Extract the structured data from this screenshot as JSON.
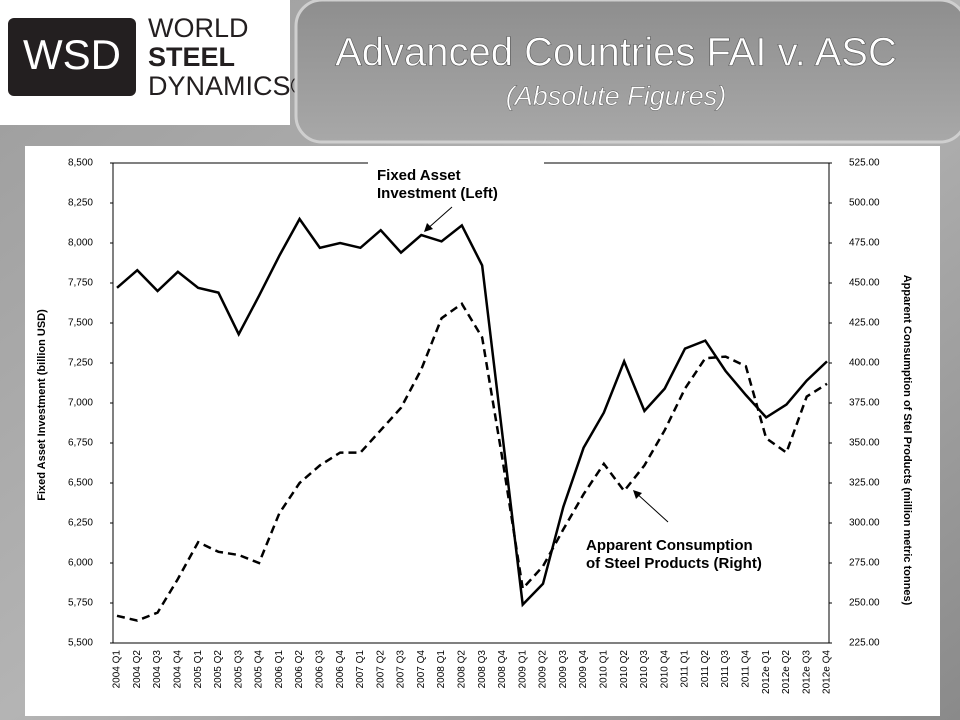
{
  "header": {
    "logo": "WSD",
    "logo_words": [
      "WORLD",
      "STEEL",
      "DYNAMICS®"
    ],
    "title": "Advanced Countries FAI v. ASC",
    "subtitle": "(Absolute Figures)"
  },
  "chart_data": {
    "type": "line",
    "y_label": "Fixed Asset Investment (billion USD)",
    "y2_label": "Apparent Consumption  of Stel Products  (million metric tonnes)",
    "categories": [
      "2004 Q1",
      "2004 Q2",
      "2004 Q3",
      "2004 Q4",
      "2005 Q1",
      "2005 Q2",
      "2005 Q3",
      "2005 Q4",
      "2006 Q1",
      "2006 Q2",
      "2006 Q3",
      "2006 Q4",
      "2007 Q1",
      "2007 Q2",
      "2007 Q3",
      "2007 Q4",
      "2008 Q1",
      "2008 Q2",
      "2008 Q3",
      "2008 Q4",
      "2009 Q1",
      "2009 Q2",
      "2009 Q3",
      "2009 Q4",
      "2010 Q1",
      "2010 Q2",
      "2010 Q3",
      "2010 Q4",
      "2011 Q1",
      "2011 Q2",
      "2011 Q3",
      "2011 Q4",
      "2012e Q1",
      "2012e Q2",
      "2012e Q3",
      "2012e Q4"
    ],
    "series": [
      {
        "name": "Fixed Asset Investment (Left)",
        "color": "#000000",
        "line_style": "solid",
        "axis": "y",
        "values": [
          7720,
          7830,
          7700,
          7820,
          7720,
          7690,
          7430,
          7670,
          7920,
          8150,
          7970,
          8000,
          7970,
          8080,
          7940,
          8050,
          8010,
          8110,
          7860,
          6800,
          5740,
          5870,
          6350,
          6720,
          6940,
          7260,
          6950,
          7090,
          7340,
          7390,
          7200,
          7050,
          6910,
          6990,
          7140,
          7260
        ]
      },
      {
        "name": "Apparent Consumption of Steel Products (Right)",
        "color": "#000000",
        "line_style": "dashed",
        "axis": "y2",
        "values": [
          242,
          239,
          244,
          265,
          288,
          282,
          280,
          275,
          306,
          325,
          336,
          344,
          344,
          358,
          372,
          396,
          428,
          437,
          416,
          340,
          259,
          273,
          296,
          318,
          337,
          320,
          336,
          358,
          384,
          403,
          404,
          398,
          353,
          344,
          379,
          387
        ]
      }
    ],
    "annotations": [
      [
        "Fixed Asset",
        "Investment (Left)"
      ],
      [
        "Apparent Consumption",
        "of Steel Products (Right)"
      ]
    ],
    "ylim": [
      5500,
      8500
    ],
    "yticks": [
      {
        "value": 5500,
        "label": "5,500"
      },
      {
        "value": 5750,
        "label": "5,750"
      },
      {
        "value": 6000,
        "label": "6,000"
      },
      {
        "value": 6250,
        "label": "6,250"
      },
      {
        "value": 6500,
        "label": "6,500"
      },
      {
        "value": 6750,
        "label": "6,750"
      },
      {
        "value": 7000,
        "label": "7,000"
      },
      {
        "value": 7250,
        "label": "7,250"
      },
      {
        "value": 7500,
        "label": "7,500"
      },
      {
        "value": 7750,
        "label": "7,750"
      },
      {
        "value": 8000,
        "label": "8,000"
      },
      {
        "value": 8250,
        "label": "8,250"
      },
      {
        "value": 8500,
        "label": "8,500"
      }
    ],
    "y2lim": [
      225,
      525
    ],
    "y2ticks": [
      {
        "value": 225,
        "label": "225.00"
      },
      {
        "value": 250,
        "label": "250.00"
      },
      {
        "value": 275,
        "label": "275.00"
      },
      {
        "value": 300,
        "label": "300.00"
      },
      {
        "value": 325,
        "label": "325.00"
      },
      {
        "value": 350,
        "label": "350.00"
      },
      {
        "value": 375,
        "label": "375.00"
      },
      {
        "value": 400,
        "label": "400.00"
      },
      {
        "value": 425,
        "label": "425.00"
      },
      {
        "value": 450,
        "label": "450.00"
      },
      {
        "value": 475,
        "label": "475.00"
      },
      {
        "value": 500,
        "label": "500.00"
      },
      {
        "value": 525,
        "label": "525.00"
      }
    ],
    "grid": false
  }
}
